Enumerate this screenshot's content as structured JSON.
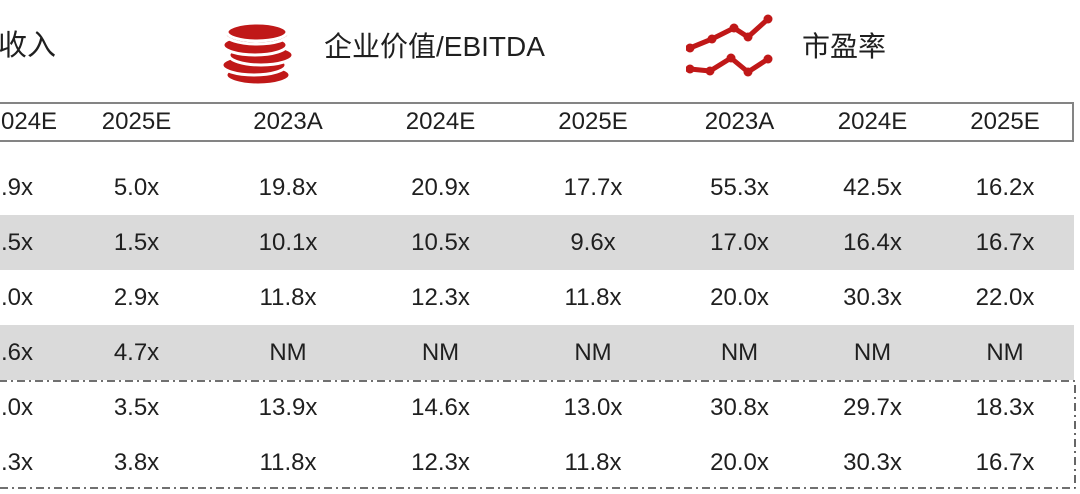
{
  "sections": [
    {
      "id": "ev-revenue",
      "label": "/收入",
      "icon": null
    },
    {
      "id": "ev-ebitda",
      "label": "企业价值/EBITDA",
      "icon": "coins-icon"
    },
    {
      "id": "pe-ratio",
      "label": "市盈率",
      "icon": "line-chart-icon"
    }
  ],
  "table": {
    "column_headers": [
      "024E",
      "2025E",
      "2023A",
      "2024E",
      "2025E",
      "2023A",
      "2024E",
      "2025E"
    ],
    "rows": [
      [
        ".9x",
        "5.0x",
        "19.8x",
        "20.9x",
        "17.7x",
        "55.3x",
        "42.5x",
        "16.2x"
      ],
      [
        ".5x",
        "1.5x",
        "10.1x",
        "10.5x",
        "9.6x",
        "17.0x",
        "16.4x",
        "16.7x"
      ],
      [
        ".0x",
        "2.9x",
        "11.8x",
        "12.3x",
        "11.8x",
        "20.0x",
        "30.3x",
        "22.0x"
      ],
      [
        ".6x",
        "4.7x",
        "NM",
        "NM",
        "NM",
        "NM",
        "NM",
        "NM"
      ],
      [
        ".0x",
        "3.5x",
        "13.9x",
        "14.6x",
        "13.0x",
        "30.8x",
        "29.7x",
        "18.3x"
      ],
      [
        ".3x",
        "3.8x",
        "11.8x",
        "12.3x",
        "11.8x",
        "20.0x",
        "30.3x",
        "16.7x"
      ]
    ],
    "shaded_row_indexes": [
      1,
      3
    ],
    "dashed_outline_row_indexes": [
      4,
      5
    ]
  },
  "colors": {
    "accent_red": "#C01818",
    "row_shade": "#DADADA",
    "border_gray": "#848484",
    "dash_gray": "#404040",
    "text_color": "#1F1F1F"
  }
}
